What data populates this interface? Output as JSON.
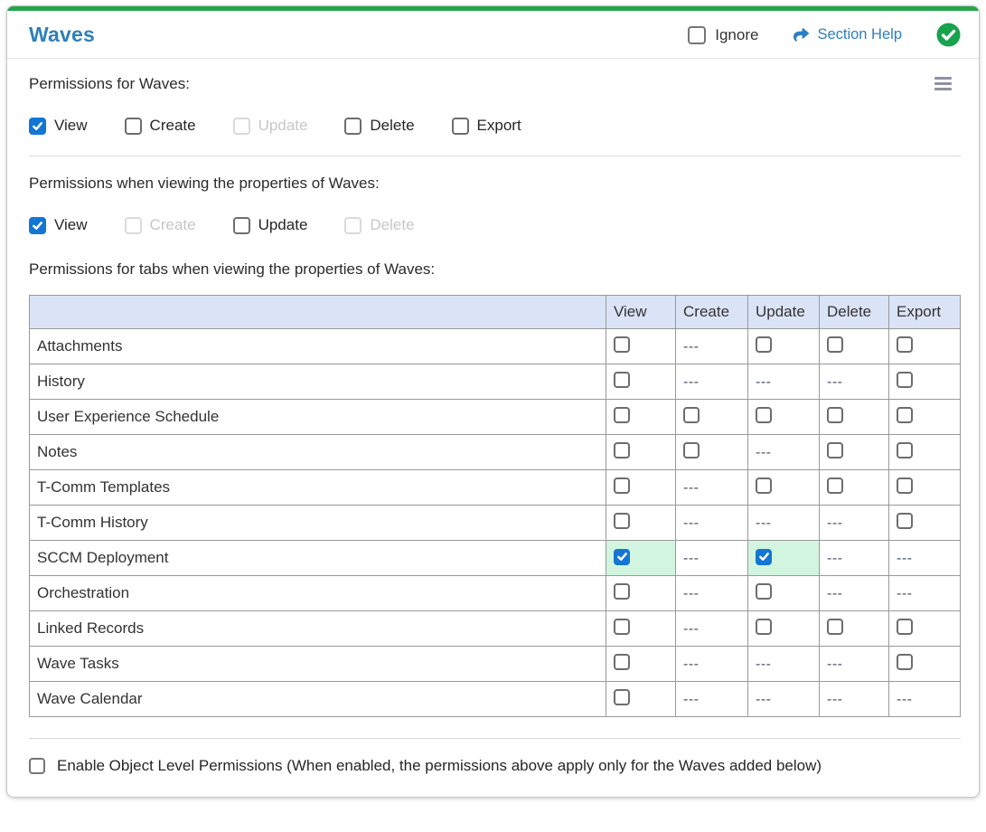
{
  "colors": {
    "accent_green": "#25a54a",
    "title_blue": "#2e80b9",
    "link_blue": "#2d7fc1",
    "checkbox_blue": "#1376d4",
    "highlight_green": "#d2f5e0",
    "table_header_bg": "#dbe4f6",
    "status_green": "#17a24b"
  },
  "header": {
    "title": "Waves",
    "ignore": {
      "label": "Ignore",
      "checked": false
    },
    "section_help_label": "Section Help",
    "status_icon": "green-circle-check"
  },
  "menu_icon": "hamburger-icon",
  "permissions_main": {
    "label": "Permissions for Waves:",
    "items": [
      {
        "label": "View",
        "checked": true,
        "disabled": false
      },
      {
        "label": "Create",
        "checked": false,
        "disabled": false
      },
      {
        "label": "Update",
        "checked": false,
        "disabled": true
      },
      {
        "label": "Delete",
        "checked": false,
        "disabled": false
      },
      {
        "label": "Export",
        "checked": false,
        "disabled": false
      }
    ]
  },
  "permissions_properties": {
    "label": "Permissions when viewing the properties of Waves:",
    "items": [
      {
        "label": "View",
        "checked": true,
        "disabled": false
      },
      {
        "label": "Create",
        "checked": false,
        "disabled": true
      },
      {
        "label": "Update",
        "checked": false,
        "disabled": false
      },
      {
        "label": "Delete",
        "checked": false,
        "disabled": true
      }
    ]
  },
  "tabs_permissions": {
    "label": "Permissions for tabs when viewing the properties of Waves:",
    "columns": [
      "View",
      "Create",
      "Update",
      "Delete",
      "Export"
    ],
    "na_text": "---",
    "rows": [
      {
        "name": "Attachments",
        "cells": [
          "box",
          "na",
          "box",
          "box",
          "box"
        ]
      },
      {
        "name": "History",
        "cells": [
          "box",
          "na",
          "na",
          "na",
          "box"
        ]
      },
      {
        "name": "User Experience Schedule",
        "cells": [
          "box",
          "box",
          "box",
          "box",
          "box"
        ]
      },
      {
        "name": "Notes",
        "cells": [
          "box",
          "box",
          "na",
          "box",
          "box"
        ]
      },
      {
        "name": "T-Comm Templates",
        "cells": [
          "box",
          "na",
          "box",
          "box",
          "box"
        ]
      },
      {
        "name": "T-Comm History",
        "cells": [
          "box",
          "na",
          "na",
          "na",
          "box"
        ]
      },
      {
        "name": "SCCM Deployment",
        "cells": [
          "checked",
          "na",
          "checked",
          "na",
          "na"
        ]
      },
      {
        "name": "Orchestration",
        "cells": [
          "box",
          "na",
          "box",
          "na",
          "na"
        ]
      },
      {
        "name": "Linked Records",
        "cells": [
          "box",
          "na",
          "box",
          "box",
          "box"
        ]
      },
      {
        "name": "Wave Tasks",
        "cells": [
          "box",
          "na",
          "na",
          "na",
          "box"
        ]
      },
      {
        "name": "Wave Calendar",
        "cells": [
          "box",
          "na",
          "na",
          "na",
          "na"
        ]
      }
    ]
  },
  "footer": {
    "label": "Enable Object Level Permissions (When enabled, the permissions above apply only for the Waves added below)",
    "checked": false
  }
}
